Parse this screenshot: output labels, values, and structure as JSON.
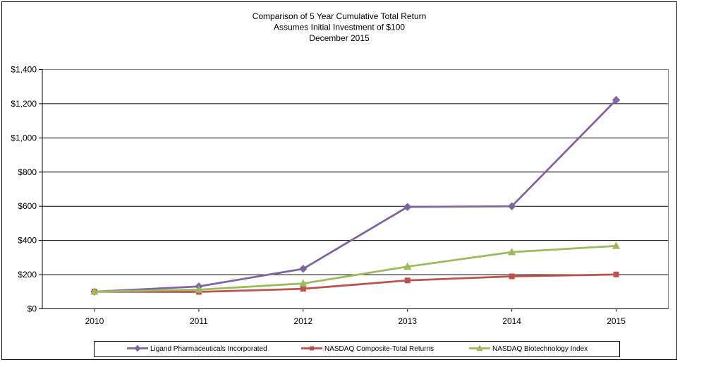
{
  "chart_data": {
    "type": "line",
    "title_lines": [
      "Comparison of 5 Year Cumulative Total Return",
      "Assumes Initial Investment of $100",
      "December 2015"
    ],
    "categories": [
      "2010",
      "2011",
      "2012",
      "2013",
      "2014",
      "2015"
    ],
    "series": [
      {
        "name": "Ligand Pharmaceuticals Incorporated",
        "color": "#8064A2",
        "marker": "diamond",
        "values": [
          100,
          131,
          234,
          596,
          600,
          1222
        ]
      },
      {
        "name": "NASDAQ Composite-Total Returns",
        "color": "#C0504D",
        "marker": "square",
        "values": [
          100,
          99,
          117,
          166,
          190,
          201
        ]
      },
      {
        "name": "NASDAQ Biotechnology Index",
        "color": "#9BBB59",
        "marker": "triangle",
        "values": [
          100,
          112,
          148,
          247,
          332,
          368
        ]
      }
    ],
    "xlabel": "",
    "ylabel": "",
    "y_axis": {
      "min": 0,
      "max": 1400,
      "step": 200,
      "unit": "USD"
    },
    "y_tick_labels": [
      "$0",
      "$200",
      "$400",
      "$600",
      "$800",
      "$1,000",
      "$1,200",
      "$1,400"
    ],
    "grid": true,
    "legend_position": "bottom",
    "styles": {
      "grid_color": "#000000",
      "axis_color": "#000000",
      "plot_border_color": "#808080",
      "frame_color": "#000000",
      "background_color": "#FFFFFF"
    }
  }
}
